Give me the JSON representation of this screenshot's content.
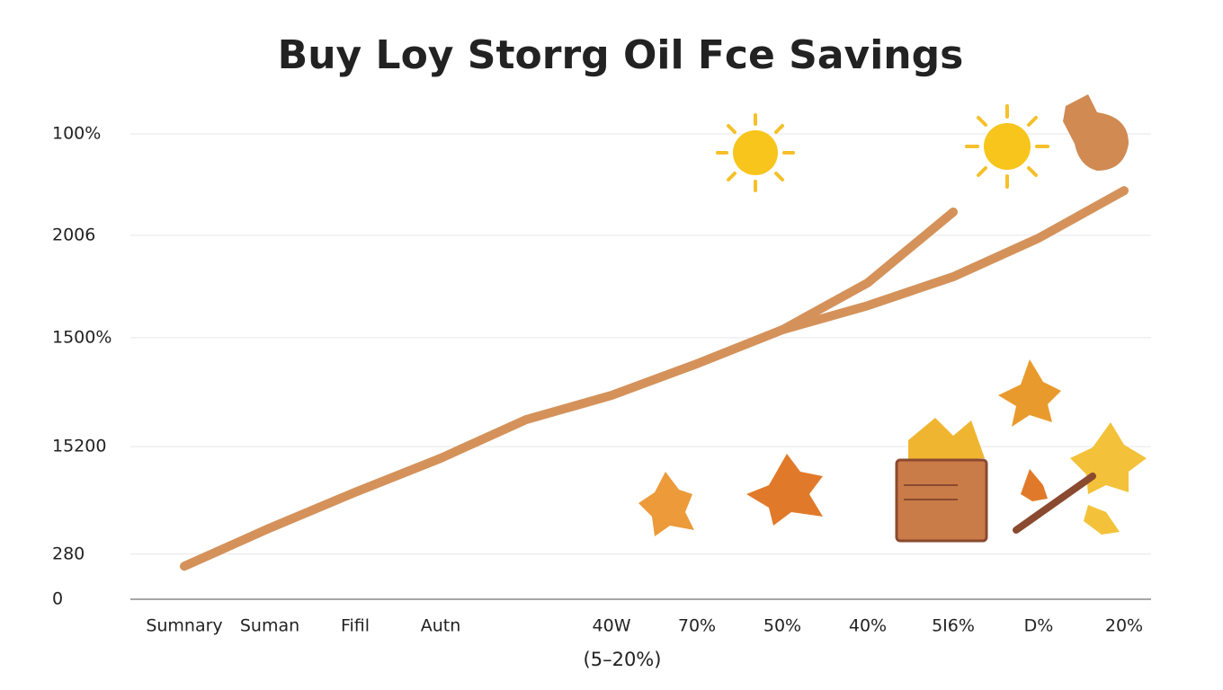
{
  "chart_data": {
    "type": "line",
    "title": "Buy Loy Storrg Oil Fce Savings",
    "x_label": "(5–20%)",
    "categories": [
      "Sumnary",
      "Suman",
      "Fifil",
      "Autn",
      null,
      "40W",
      "70%",
      "50%",
      "40%",
      "5I6%",
      "D%",
      "20%"
    ],
    "series": [
      {
        "color": "#d4925a",
        "values": [
          7.1,
          15.3,
          23.0,
          30.3,
          38.6,
          43.8,
          50.6,
          57.9,
          63.1,
          69.3,
          77.6,
          87.8
        ]
      },
      {
        "color": "#d4925a",
        "values": [
          null,
          null,
          null,
          null,
          null,
          null,
          null,
          57.9,
          68.0,
          83.2,
          null,
          null
        ]
      }
    ],
    "ylim": [
      0,
      100
    ],
    "yticks": [
      0,
      {
        "value": 9.7,
        "label": "280"
      },
      {
        "value": 32.8,
        "label": "15200"
      },
      {
        "value": 56.2,
        "label": "1500%"
      },
      {
        "value": 78.2,
        "label": "2006"
      },
      {
        "value": 100,
        "label": "100%"
      }
    ],
    "grid": true
  }
}
